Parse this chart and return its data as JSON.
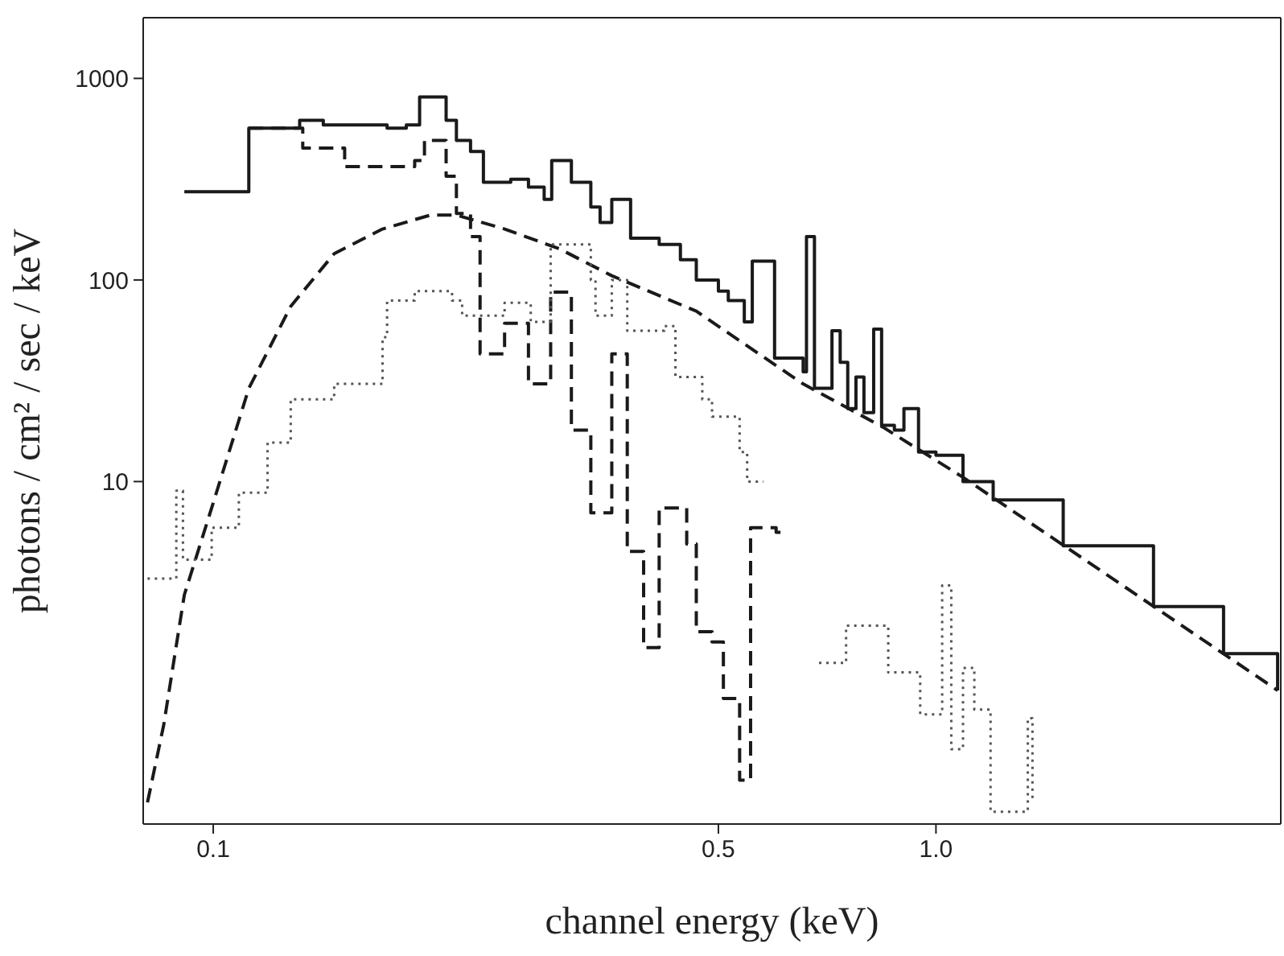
{
  "chart_data": {
    "type": "line",
    "xlabel": "channel energy (keV)",
    "ylabel": "photons / cm² / sec / keV",
    "log": "xy",
    "xlim": [
      0.08,
      3
    ],
    "ylim": [
      0.2,
      2000
    ],
    "xticks": [
      0.1,
      0.5,
      {
        "value": 1,
        "label": "1.0"
      }
    ],
    "yticks": [
      10,
      100,
      1000
    ],
    "series": [
      {
        "type": "step",
        "color": "#1a1a1a",
        "line_style": "solid",
        "x": [
          0.0912,
          0.112,
          0.1317,
          0.142,
          0.174,
          0.185,
          0.193,
          0.21,
          0.217,
          0.227,
          0.2365,
          0.258,
          0.273,
          0.287,
          0.294,
          0.313,
          0.333,
          0.343,
          0.356,
          0.378,
          0.414,
          0.443,
          0.466,
          0.5,
          0.516,
          0.543,
          0.557,
          0.598,
          0.655,
          0.662,
          0.679,
          0.718,
          0.737,
          0.755,
          0.775,
          0.795,
          0.82,
          0.841,
          0.876,
          0.903,
          0.946,
          1.0,
          1.09,
          1.2,
          1.5,
          2.0,
          2.5,
          2.97
        ],
        "values": [
          274,
          567,
          620,
          588,
          567,
          588,
          809,
          620,
          492,
          434,
          305,
          316,
          289,
          251,
          391,
          305,
          230,
          193,
          251,
          161,
          150,
          126,
          100,
          88,
          79,
          62,
          124,
          41,
          35,
          164,
          29,
          56,
          39,
          23,
          33,
          22,
          57,
          19,
          18,
          23,
          14,
          13.5,
          10,
          8.1,
          4.8,
          2.4,
          1.4,
          0.92
        ]
      },
      {
        "color": "#1a1a1a",
        "line_style": "dashed",
        "x": [
          0.0811,
          0.0854,
          0.0912,
          0.0995,
          0.112,
          0.128,
          0.147,
          0.1715,
          0.2,
          0.217,
          0.253,
          0.301,
          0.356,
          0.466,
          0.655,
          0.845,
          1.09,
          2.97
        ],
        "values": [
          0.256,
          0.62,
          2.74,
          7.4,
          29,
          74,
          135,
          179,
          210,
          210,
          179,
          143,
          105,
          70,
          30.5,
          18.6,
          10.5,
          0.92
        ]
      },
      {
        "type": "step",
        "color": "#1a1a1a",
        "line_style": "dashed",
        "x": [
          0.112,
          0.133,
          0.152,
          0.19,
          0.196,
          0.21,
          0.217,
          0.227,
          0.234,
          0.253,
          0.273,
          0.293,
          0.313,
          0.333,
          0.356,
          0.374,
          0.394,
          0.414,
          0.452,
          0.466,
          0.49,
          0.508,
          0.535,
          0.554,
          0.601,
          0.614
        ],
        "values": [
          567,
          451,
          365,
          391,
          492,
          327,
          214,
          164,
          43,
          61,
          30.5,
          87,
          18,
          7.0,
          43,
          4.5,
          1.5,
          7.4,
          4.9,
          1.8,
          1.6,
          0.84,
          0.33,
          5.9,
          5.6,
          5.6
        ]
      },
      {
        "type": "step",
        "color": "#555555",
        "line_style": "dotted",
        "x": [
          0.0811,
          0.0889,
          0.0908,
          0.0995,
          0.1085,
          0.1189,
          0.128,
          0.147,
          0.1715,
          0.174,
          0.19,
          0.214,
          0.221,
          0.253,
          0.275,
          0.293,
          0.333,
          0.338,
          0.356,
          0.374,
          0.421,
          0.436,
          0.475,
          0.49,
          0.535,
          0.548,
          0.577
        ],
        "values": [
          3.3,
          9.0,
          4.1,
          5.9,
          8.8,
          15.6,
          25.6,
          30.5,
          52,
          79,
          88,
          79,
          66.5,
          77,
          62,
          150,
          100,
          66.5,
          100,
          56,
          59,
          33,
          25.6,
          21,
          14,
          10,
          10
        ]
      },
      {
        "type": "step",
        "color": "#555555",
        "line_style": "dotted",
        "x": [
          0.689,
          0.751,
          0.859,
          0.951,
          1.02,
          1.05,
          1.09,
          1.13,
          1.19,
          1.34,
          1.36
        ],
        "values": [
          1.26,
          1.93,
          1.13,
          0.7,
          3.05,
          0.47,
          1.19,
          0.74,
          0.23,
          0.67,
          0.26
        ]
      }
    ]
  }
}
